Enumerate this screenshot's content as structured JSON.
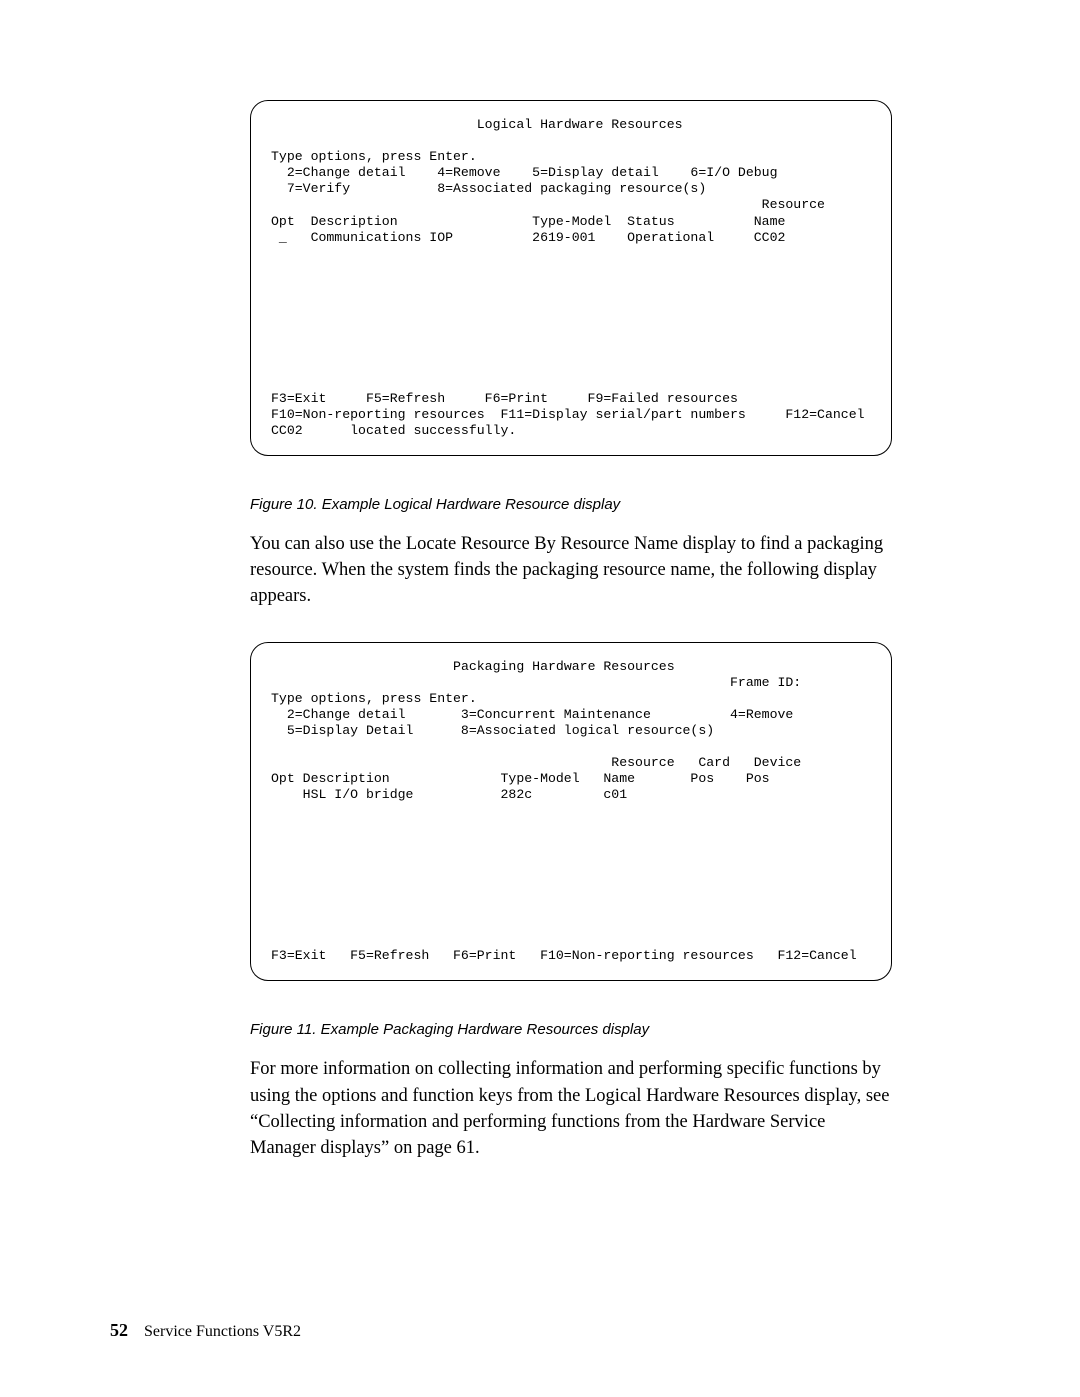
{
  "terminal1": {
    "title_indent": "                          ",
    "title": "Logical Hardware Resources",
    "prompt": "Type options, press Enter.",
    "options_line1": "  2=Change detail    4=Remove    5=Display detail    6=I/O Debug",
    "options_line2": "  7=Verify           8=Associated packaging resource(s)",
    "header_line1": "                                                              Resource",
    "header_line2": "Opt  Description                 Type-Model  Status          Name",
    "row1": " _   Communications IOP          2619-001    Operational     CC02",
    "fkeys_line1": "F3=Exit     F5=Refresh     F6=Print     F9=Failed resources",
    "fkeys_line2": "F10=Non-reporting resources  F11=Display serial/part numbers     F12=Cancel",
    "status_line": "CC02      located successfully."
  },
  "caption1": "Figure 10. Example Logical Hardware Resource display",
  "para1": "You can also use the Locate Resource By Resource Name display to find a packaging resource. When the system finds the packaging resource name, the following display appears.",
  "terminal2": {
    "title_indent": "                       ",
    "title": "Packaging Hardware Resources",
    "frame_line": "                                                          Frame ID:",
    "prompt": "Type options, press Enter.",
    "options_line1": "  2=Change detail       3=Concurrent Maintenance          4=Remove",
    "options_line2": "  5=Display Detail      8=Associated logical resource(s)",
    "header_line1": "                                           Resource   Card   Device",
    "header_line2": "Opt Description              Type-Model   Name       Pos    Pos",
    "row1": "    HSL I/O bridge           282c         c01",
    "fkeys_line1": "F3=Exit   F5=Refresh   F6=Print   F10=Non-reporting resources   F12=Cancel"
  },
  "caption2": "Figure 11. Example Packaging Hardware Resources display",
  "para2": "For more information on collecting information and performing specific functions by using the options and function keys from the Logical Hardware Resources display, see “Collecting information and performing functions from the Hardware Service Manager displays” on page 61.",
  "footer": {
    "pagenum": "52",
    "text": "Service Functions V5R2"
  }
}
